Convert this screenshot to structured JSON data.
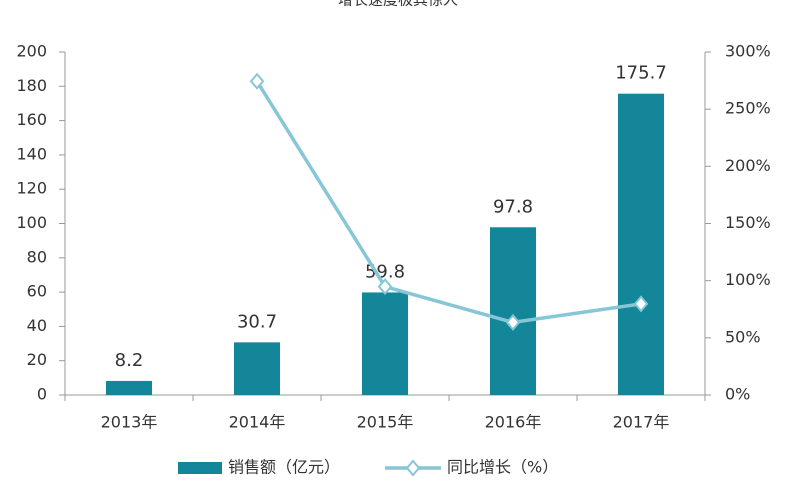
{
  "chart_data": {
    "type": "bar",
    "title": "增长速度极其惊人",
    "categories": [
      "2013年",
      "2014年",
      "2015年",
      "2016年",
      "2017年"
    ],
    "series": [
      {
        "name": "销售额（亿元）",
        "color": "#14869a",
        "values": [
          8.2,
          30.7,
          59.8,
          97.8,
          175.7
        ]
      },
      {
        "name": "同比增长（%）",
        "color": "#86c6d6",
        "type": "line",
        "axis": "y2",
        "values": [
          null,
          274.4,
          94.8,
          63.5,
          79.7
        ]
      }
    ],
    "ylim": [
      0,
      200
    ],
    "yticks": [
      0,
      20,
      40,
      60,
      80,
      100,
      120,
      140,
      160,
      180,
      200
    ],
    "y2lim": [
      0,
      300
    ],
    "y2ticks": [
      {
        "value": 0,
        "label": "0%"
      },
      {
        "value": 50,
        "label": "50%"
      },
      {
        "value": 100,
        "label": "100%"
      },
      {
        "value": 150,
        "label": "150%"
      },
      {
        "value": 200,
        "label": "200%"
      },
      {
        "value": 250,
        "label": "250%"
      },
      {
        "value": 300,
        "label": "300%"
      }
    ],
    "legend": "bottom"
  }
}
